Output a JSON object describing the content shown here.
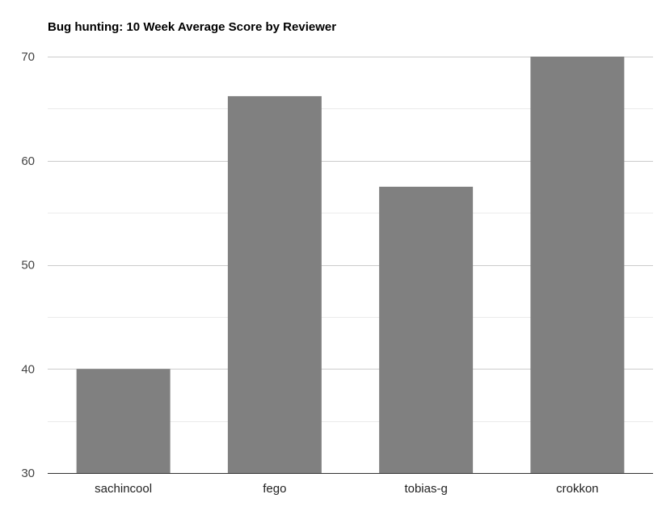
{
  "chart_data": {
    "type": "bar",
    "title": "Bug hunting: 10 Week Average Score by Reviewer",
    "xlabel": "",
    "ylabel": "",
    "categories": [
      "sachincool",
      "fego",
      "tobias-g",
      "crokkon"
    ],
    "values": [
      40,
      66.2,
      57.5,
      70
    ],
    "ylim": [
      30,
      70
    ],
    "yticks": [
      30,
      40,
      50,
      60,
      70
    ],
    "minor_gridlines": true,
    "grid": true,
    "legend": "none",
    "colors": {
      "bar": "#808080",
      "major_grid": "#cccccc",
      "minor_grid": "#ebebeb",
      "baseline": "#333333"
    }
  }
}
